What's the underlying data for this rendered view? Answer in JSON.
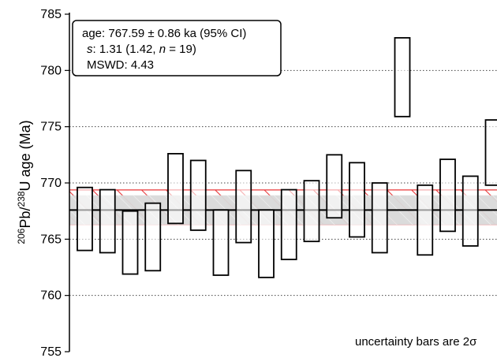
{
  "chart_data": {
    "type": "scatter",
    "subtype": "weighted-mean-rank-plot",
    "ylabel": {
      "base": "Pb",
      "mass1": "206",
      "separator": "/",
      "mass2": "238",
      "element2": "U age (Ma)"
    },
    "ylim": [
      755,
      785
    ],
    "yticks": [
      "755",
      "760",
      "765",
      "770",
      "775",
      "780",
      "785"
    ],
    "grid": "horizontal dotted",
    "summary": {
      "line1": "age: 767.59 ± 0.86 ka (95% CI)",
      "line2_prefix": "s",
      "line2_mid": ": 1.31 (1.42, ",
      "line2_n": "n",
      "line2_suffix": " = 19)",
      "line3": "MSWD: 4.43"
    },
    "weighted_mean": 767.59,
    "band_gray": [
      766.28,
      768.9
    ],
    "band_red": [
      766.31,
      769.38
    ],
    "footnote": "uncertainty bars are 2σ",
    "colors": {
      "hatch": "#e8383a",
      "gray_band": "#d9d9d9",
      "bars": "#000000"
    },
    "series": [
      {
        "values": [
          {
            "low": 764.0,
            "high": 769.6
          },
          {
            "low": 763.8,
            "high": 769.4
          },
          {
            "low": 761.9,
            "high": 767.5
          },
          {
            "low": 762.2,
            "high": 768.2
          },
          {
            "low": 766.4,
            "high": 772.6
          },
          {
            "low": 765.8,
            "high": 772.0
          },
          {
            "low": 761.8,
            "high": 767.6
          },
          {
            "low": 764.7,
            "high": 771.1
          },
          {
            "low": 761.6,
            "high": 767.6
          },
          {
            "low": 763.2,
            "high": 769.4
          },
          {
            "low": 764.8,
            "high": 770.2
          },
          {
            "low": 766.9,
            "high": 772.5
          },
          {
            "low": 765.2,
            "high": 771.8
          },
          {
            "low": 763.8,
            "high": 770.0
          },
          {
            "low": 775.9,
            "high": 782.9
          },
          {
            "low": 763.6,
            "high": 769.8
          },
          {
            "low": 765.7,
            "high": 772.1
          },
          {
            "low": 764.4,
            "high": 770.6
          },
          {
            "low": 769.8,
            "high": 775.6
          }
        ]
      }
    ]
  }
}
